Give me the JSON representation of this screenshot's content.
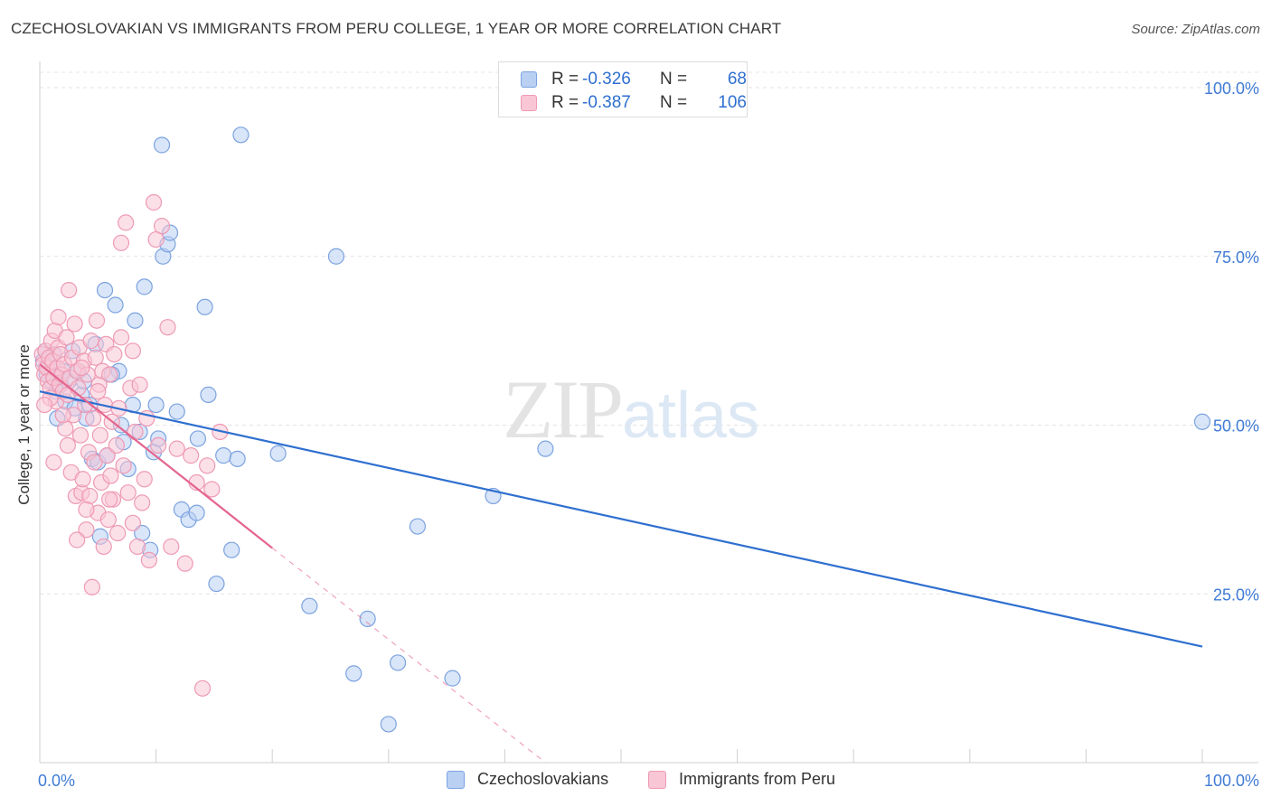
{
  "title": "CZECHOSLOVAKIAN VS IMMIGRANTS FROM PERU COLLEGE, 1 YEAR OR MORE CORRELATION CHART",
  "source": "Source: ZipAtlas.com",
  "watermark": {
    "zip": "ZIP",
    "atlas": "atlas"
  },
  "legend": {
    "rows": [
      {
        "r_label": "R =",
        "r_value": "-0.326",
        "n_label": "N =",
        "n_value": "68",
        "fill": "#b9d0f2",
        "stroke": "#7ba3e0"
      },
      {
        "r_label": "R =",
        "r_value": "-0.387",
        "n_label": "N =",
        "n_value": "106",
        "fill": "#f9c6d6",
        "stroke": "#ee9ab4"
      }
    ]
  },
  "bottom_legend": [
    {
      "label": "Czechoslovakians",
      "fill": "#b9d0f2",
      "stroke": "#7ba3e0"
    },
    {
      "label": "Immigrants from Peru",
      "fill": "#f9c6d6",
      "stroke": "#ee9ab4"
    }
  ],
  "chart_data": {
    "type": "scatter",
    "title": "CZECHOSLOVAKIAN VS IMMIGRANTS FROM PERU COLLEGE, 1 YEAR OR MORE CORRELATION CHART",
    "xlabel": "",
    "ylabel": "College, 1 year or more",
    "xlim": [
      0,
      100
    ],
    "ylim": [
      0,
      100
    ],
    "x_tick_labels": [
      "0.0%",
      "100.0%"
    ],
    "y_tick_labels": [
      "100.0%",
      "75.0%",
      "50.0%",
      "25.0%"
    ],
    "y_tick_values": [
      100,
      75,
      50,
      25
    ],
    "grid": true,
    "series": [
      {
        "name": "Czechoslovakians",
        "color": "#7ba3e0",
        "fill": "#b9d0f2",
        "trend_color": "#2f6fd0",
        "trend": {
          "x0": 0,
          "y0": 55.0,
          "x1": 100,
          "y1": 17.2
        },
        "points": [
          [
            0.3,
            59.5
          ],
          [
            0.5,
            61.0
          ],
          [
            0.8,
            58.5
          ],
          [
            1.0,
            56.5
          ],
          [
            1.2,
            60.5
          ],
          [
            1.5,
            51.0
          ],
          [
            1.8,
            56.0
          ],
          [
            2.2,
            53.5
          ],
          [
            2.5,
            56.5
          ],
          [
            3.0,
            52.5
          ],
          [
            3.3,
            58.0
          ],
          [
            3.6,
            54.5
          ],
          [
            3.8,
            56.5
          ],
          [
            4.0,
            51.0
          ],
          [
            4.3,
            53.0
          ],
          [
            4.5,
            45.0
          ],
          [
            4.8,
            62.0
          ],
          [
            5.0,
            44.5
          ],
          [
            5.2,
            33.5
          ],
          [
            5.6,
            70.0
          ],
          [
            5.8,
            45.5
          ],
          [
            6.5,
            67.8
          ],
          [
            6.8,
            58.0
          ],
          [
            7.0,
            50.0
          ],
          [
            7.2,
            47.5
          ],
          [
            7.6,
            43.5
          ],
          [
            8.0,
            53.0
          ],
          [
            8.2,
            65.5
          ],
          [
            8.6,
            49.0
          ],
          [
            8.8,
            34.0
          ],
          [
            9.0,
            70.5
          ],
          [
            9.5,
            31.5
          ],
          [
            9.8,
            46.0
          ],
          [
            10.0,
            53.0
          ],
          [
            10.2,
            48.0
          ],
          [
            10.5,
            91.5
          ],
          [
            10.6,
            75.0
          ],
          [
            11.0,
            76.8
          ],
          [
            11.2,
            78.5
          ],
          [
            11.8,
            52.0
          ],
          [
            12.2,
            37.5
          ],
          [
            12.8,
            36.0
          ],
          [
            13.5,
            37.0
          ],
          [
            13.6,
            48.0
          ],
          [
            14.2,
            67.5
          ],
          [
            14.5,
            54.5
          ],
          [
            15.2,
            26.5
          ],
          [
            15.8,
            45.5
          ],
          [
            16.5,
            31.5
          ],
          [
            17.0,
            45.0
          ],
          [
            17.3,
            93.0
          ],
          [
            20.5,
            45.8
          ],
          [
            23.2,
            23.2
          ],
          [
            25.5,
            75.0
          ],
          [
            27.0,
            13.2
          ],
          [
            28.2,
            21.3
          ],
          [
            30.0,
            5.7
          ],
          [
            30.8,
            14.8
          ],
          [
            32.5,
            35.0
          ],
          [
            35.5,
            12.5
          ],
          [
            39.0,
            39.5
          ],
          [
            43.5,
            46.5
          ],
          [
            100.0,
            50.5
          ],
          [
            2.0,
            58.0
          ],
          [
            0.6,
            57.5
          ],
          [
            1.4,
            55.0
          ],
          [
            2.8,
            61.0
          ],
          [
            6.2,
            57.5
          ]
        ]
      },
      {
        "name": "Immigrants from Peru",
        "color": "#ee9ab4",
        "fill": "#f9c6d6",
        "trend_color": "#e4658f",
        "trend": {
          "x0": 0,
          "y0": 59.0,
          "x1": 20,
          "y1": 31.8
        },
        "trend_dashed": {
          "x0": 20,
          "y0": 31.8,
          "x1": 43.5,
          "y1": 0
        },
        "points": [
          [
            0.2,
            60.5
          ],
          [
            0.3,
            59.0
          ],
          [
            0.4,
            57.5
          ],
          [
            0.5,
            61.0
          ],
          [
            0.6,
            58.5
          ],
          [
            0.7,
            56.5
          ],
          [
            0.8,
            60.0
          ],
          [
            0.9,
            55.5
          ],
          [
            1.0,
            62.5
          ],
          [
            1.1,
            59.5
          ],
          [
            1.2,
            57.0
          ],
          [
            1.3,
            64.0
          ],
          [
            1.4,
            53.5
          ],
          [
            1.5,
            58.5
          ],
          [
            1.6,
            61.5
          ],
          [
            1.7,
            56.0
          ],
          [
            1.8,
            60.5
          ],
          [
            1.9,
            57.5
          ],
          [
            2.0,
            55.0
          ],
          [
            2.1,
            59.0
          ],
          [
            2.2,
            49.5
          ],
          [
            2.3,
            63.0
          ],
          [
            2.4,
            54.5
          ],
          [
            2.5,
            70.0
          ],
          [
            2.6,
            57.0
          ],
          [
            2.7,
            43.0
          ],
          [
            2.8,
            60.0
          ],
          [
            2.9,
            51.5
          ],
          [
            3.0,
            65.0
          ],
          [
            3.1,
            39.5
          ],
          [
            3.2,
            58.0
          ],
          [
            3.3,
            55.5
          ],
          [
            3.4,
            61.5
          ],
          [
            3.5,
            48.5
          ],
          [
            3.6,
            40.0
          ],
          [
            3.7,
            42.0
          ],
          [
            3.8,
            59.5
          ],
          [
            3.9,
            53.0
          ],
          [
            4.0,
            34.5
          ],
          [
            4.1,
            57.5
          ],
          [
            4.2,
            46.0
          ],
          [
            4.3,
            39.5
          ],
          [
            4.4,
            62.5
          ],
          [
            4.5,
            26.0
          ],
          [
            4.6,
            51.0
          ],
          [
            4.7,
            44.5
          ],
          [
            4.8,
            60.0
          ],
          [
            4.9,
            65.5
          ],
          [
            5.0,
            37.0
          ],
          [
            5.1,
            56.0
          ],
          [
            5.2,
            48.5
          ],
          [
            5.3,
            41.5
          ],
          [
            5.4,
            58.0
          ],
          [
            5.5,
            32.0
          ],
          [
            5.6,
            53.0
          ],
          [
            5.7,
            62.0
          ],
          [
            5.8,
            45.5
          ],
          [
            5.9,
            36.0
          ],
          [
            6.0,
            57.5
          ],
          [
            6.1,
            42.5
          ],
          [
            6.2,
            50.5
          ],
          [
            6.3,
            39.0
          ],
          [
            6.4,
            60.5
          ],
          [
            6.6,
            47.0
          ],
          [
            6.7,
            34.0
          ],
          [
            6.8,
            52.5
          ],
          [
            7.0,
            77.0
          ],
          [
            7.2,
            44.0
          ],
          [
            7.4,
            80.0
          ],
          [
            7.6,
            40.0
          ],
          [
            7.8,
            55.5
          ],
          [
            8.0,
            35.5
          ],
          [
            8.2,
            49.0
          ],
          [
            8.4,
            32.0
          ],
          [
            8.6,
            56.0
          ],
          [
            8.8,
            38.5
          ],
          [
            9.0,
            42.0
          ],
          [
            9.2,
            51.0
          ],
          [
            9.4,
            30.0
          ],
          [
            9.8,
            83.0
          ],
          [
            10.0,
            77.5
          ],
          [
            10.2,
            47.0
          ],
          [
            10.5,
            79.5
          ],
          [
            11.0,
            64.5
          ],
          [
            11.3,
            32.0
          ],
          [
            11.8,
            46.5
          ],
          [
            12.5,
            29.5
          ],
          [
            13.0,
            45.5
          ],
          [
            13.5,
            41.5
          ],
          [
            14.0,
            11.0
          ],
          [
            14.4,
            44.0
          ],
          [
            14.8,
            40.5
          ],
          [
            15.5,
            49.0
          ],
          [
            0.9,
            54.0
          ],
          [
            1.6,
            66.0
          ],
          [
            2.4,
            47.0
          ],
          [
            3.2,
            33.0
          ],
          [
            4.0,
            37.5
          ],
          [
            5.0,
            55.0
          ],
          [
            6.0,
            39.0
          ],
          [
            7.0,
            63.0
          ],
          [
            8.0,
            61.0
          ],
          [
            1.2,
            44.5
          ],
          [
            2.0,
            51.5
          ],
          [
            3.6,
            58.5
          ],
          [
            0.4,
            53.0
          ]
        ]
      }
    ]
  }
}
